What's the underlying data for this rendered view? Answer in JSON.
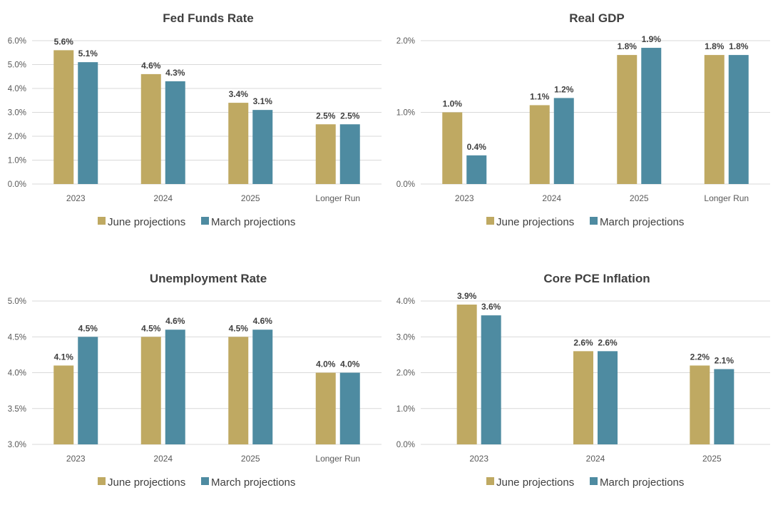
{
  "colors": {
    "june": "#bfa962",
    "march": "#4e8ba1"
  },
  "chart_data": [
    {
      "type": "bar",
      "title": "Fed Funds Rate",
      "categories": [
        "2023",
        "2024",
        "2025",
        "Longer Run"
      ],
      "series": [
        {
          "name": "June projections",
          "values": [
            5.6,
            4.6,
            3.4,
            2.5
          ],
          "labels": [
            "5.6%",
            "4.6%",
            "3.4%",
            "2.5%"
          ]
        },
        {
          "name": "March projections",
          "values": [
            5.1,
            4.3,
            3.1,
            2.5
          ],
          "labels": [
            "5.1%",
            "4.3%",
            "3.1%",
            "2.5%"
          ]
        }
      ],
      "ylim": [
        0,
        6
      ],
      "yticks": [
        0,
        1,
        2,
        3,
        4,
        5,
        6
      ],
      "ytick_labels": [
        "0.0%",
        "1.0%",
        "2.0%",
        "3.0%",
        "4.0%",
        "5.0%",
        "6.0%"
      ],
      "grid": true,
      "legend": "bottom"
    },
    {
      "type": "bar",
      "title": "Real GDP",
      "categories": [
        "2023",
        "2024",
        "2025",
        "Longer Run"
      ],
      "series": [
        {
          "name": "June projections",
          "values": [
            1.0,
            1.1,
            1.8,
            1.8
          ],
          "labels": [
            "1.0%",
            "1.1%",
            "1.8%",
            "1.8%"
          ]
        },
        {
          "name": "March projections",
          "values": [
            0.4,
            1.2,
            1.9,
            1.8
          ],
          "labels": [
            "0.4%",
            "1.2%",
            "1.9%",
            "1.8%"
          ]
        }
      ],
      "ylim": [
        0,
        2
      ],
      "yticks": [
        0,
        1,
        2
      ],
      "ytick_labels": [
        "0.0%",
        "1.0%",
        "2.0%"
      ],
      "grid": true,
      "legend": "bottom"
    },
    {
      "type": "bar",
      "title": "Unemployment Rate",
      "categories": [
        "2023",
        "2024",
        "2025",
        "Longer Run"
      ],
      "series": [
        {
          "name": "June projections",
          "values": [
            4.1,
            4.5,
            4.5,
            4.0
          ],
          "labels": [
            "4.1%",
            "4.5%",
            "4.5%",
            "4.0%"
          ]
        },
        {
          "name": "March projections",
          "values": [
            4.5,
            4.6,
            4.6,
            4.0
          ],
          "labels": [
            "4.5%",
            "4.6%",
            "4.6%",
            "4.0%"
          ]
        }
      ],
      "ylim": [
        3,
        5
      ],
      "yticks": [
        3,
        3.5,
        4,
        4.5,
        5
      ],
      "ytick_labels": [
        "3.0%",
        "3.5%",
        "4.0%",
        "4.5%",
        "5.0%"
      ],
      "grid": true,
      "legend": "bottom"
    },
    {
      "type": "bar",
      "title": "Core PCE Inflation",
      "categories": [
        "2023",
        "2024",
        "2025"
      ],
      "series": [
        {
          "name": "June projections",
          "values": [
            3.9,
            2.6,
            2.2
          ],
          "labels": [
            "3.9%",
            "2.6%",
            "2.2%"
          ]
        },
        {
          "name": "March projections",
          "values": [
            3.6,
            2.6,
            2.1
          ],
          "labels": [
            "3.6%",
            "2.6%",
            "2.1%"
          ]
        }
      ],
      "ylim": [
        0,
        4
      ],
      "yticks": [
        0,
        1,
        2,
        3,
        4
      ],
      "ytick_labels": [
        "0.0%",
        "1.0%",
        "2.0%",
        "3.0%",
        "4.0%"
      ],
      "grid": true,
      "legend": "bottom"
    }
  ]
}
